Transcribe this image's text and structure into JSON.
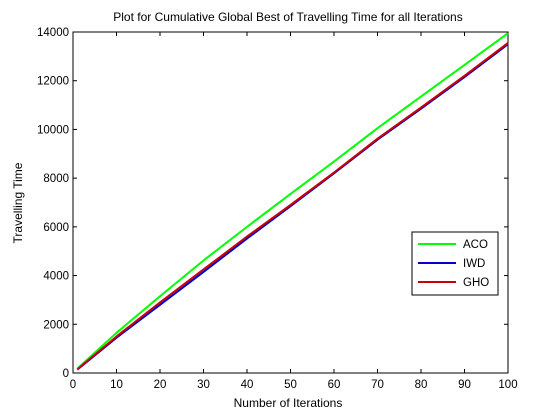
{
  "chart_data": {
    "type": "line",
    "title": "Plot for Cumulative Global Best of Travelling Time for all Iterations",
    "xlabel": "Number of Iterations",
    "ylabel": "Travelling Time",
    "xlim": [
      0,
      100
    ],
    "ylim": [
      0,
      14000
    ],
    "xticks": [
      0,
      10,
      20,
      30,
      40,
      50,
      60,
      70,
      80,
      90,
      100
    ],
    "yticks": [
      0,
      2000,
      4000,
      6000,
      8000,
      10000,
      12000,
      14000
    ],
    "grid": false,
    "legend_position": "right",
    "series": [
      {
        "name": "ACO",
        "color": "#00ff00",
        "x": [
          1,
          10,
          20,
          30,
          40,
          50,
          60,
          70,
          80,
          90,
          100
        ],
        "y": [
          180,
          1650,
          3150,
          4620,
          6000,
          7350,
          8680,
          10050,
          11350,
          12650,
          13950
        ]
      },
      {
        "name": "IWD",
        "color": "#0000cc",
        "x": [
          1,
          10,
          20,
          30,
          40,
          50,
          60,
          70,
          80,
          90,
          100
        ],
        "y": [
          140,
          1450,
          2800,
          4150,
          5520,
          6850,
          8200,
          9580,
          10850,
          12150,
          13500
        ]
      },
      {
        "name": "GHO",
        "color": "#cc0000",
        "x": [
          1,
          10,
          20,
          30,
          40,
          50,
          60,
          70,
          80,
          90,
          100
        ],
        "y": [
          150,
          1500,
          2900,
          4250,
          5600,
          6900,
          8230,
          9620,
          10900,
          12200,
          13550
        ]
      }
    ]
  }
}
